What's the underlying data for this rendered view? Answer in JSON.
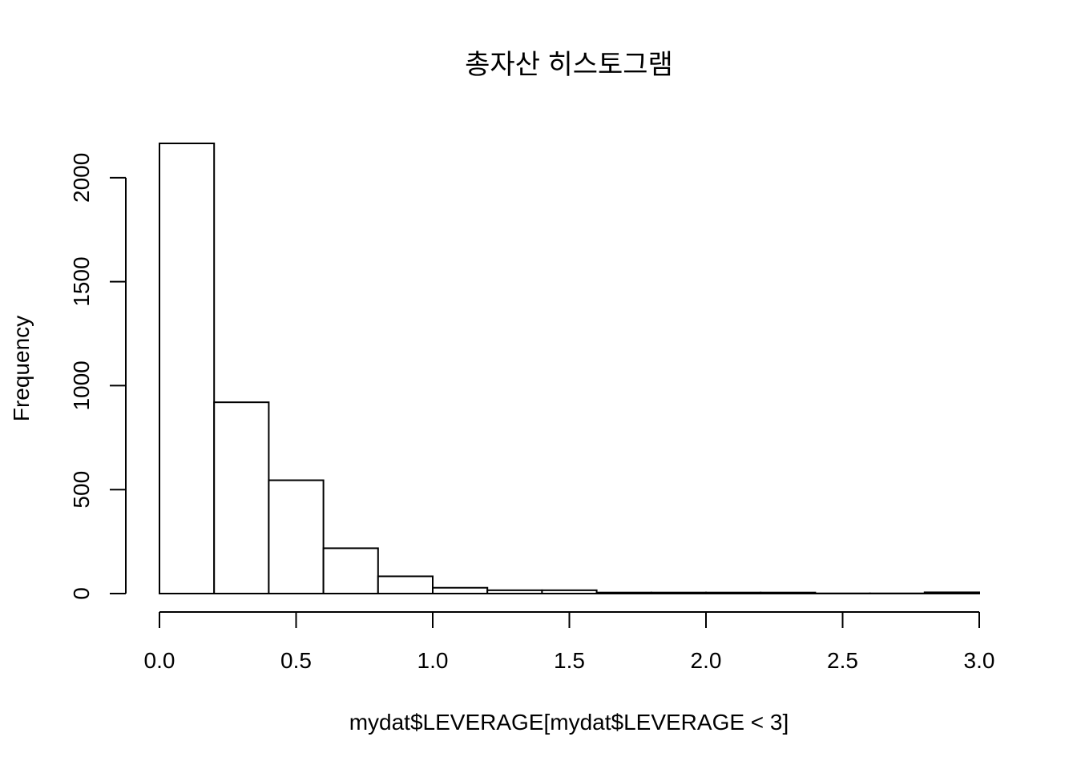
{
  "chart_data": {
    "type": "bar",
    "subtype": "histogram",
    "title": "총자산 히스토그램",
    "xlabel": "mydat$LEVERAGE[mydat$LEVERAGE < 3]",
    "ylabel": "Frequency",
    "bin_width": 0.2,
    "bins": [
      {
        "from": 0.0,
        "to": 0.2,
        "count": 2165
      },
      {
        "from": 0.2,
        "to": 0.4,
        "count": 920
      },
      {
        "from": 0.4,
        "to": 0.6,
        "count": 545
      },
      {
        "from": 0.6,
        "to": 0.8,
        "count": 218
      },
      {
        "from": 0.8,
        "to": 1.0,
        "count": 83
      },
      {
        "from": 1.0,
        "to": 1.2,
        "count": 28
      },
      {
        "from": 1.2,
        "to": 1.4,
        "count": 16
      },
      {
        "from": 1.4,
        "to": 1.6,
        "count": 16
      },
      {
        "from": 1.6,
        "to": 1.8,
        "count": 5
      },
      {
        "from": 1.8,
        "to": 2.0,
        "count": 5
      },
      {
        "from": 2.0,
        "to": 2.2,
        "count": 5
      },
      {
        "from": 2.2,
        "to": 2.4,
        "count": 5
      },
      {
        "from": 2.4,
        "to": 2.6,
        "count": 1
      },
      {
        "from": 2.6,
        "to": 2.8,
        "count": 1
      },
      {
        "from": 2.8,
        "to": 3.0,
        "count": 6
      }
    ],
    "xlim": [
      0,
      3
    ],
    "ylim": [
      0,
      2165
    ],
    "x_ticks": [
      {
        "value": 0.0,
        "label": "0.0"
      },
      {
        "value": 0.5,
        "label": "0.5"
      },
      {
        "value": 1.0,
        "label": "1.0"
      },
      {
        "value": 1.5,
        "label": "1.5"
      },
      {
        "value": 2.0,
        "label": "2.0"
      },
      {
        "value": 2.5,
        "label": "2.5"
      },
      {
        "value": 3.0,
        "label": "3.0"
      }
    ],
    "y_ticks": [
      {
        "value": 0,
        "label": "0"
      },
      {
        "value": 500,
        "label": "500"
      },
      {
        "value": 1000,
        "label": "1000"
      },
      {
        "value": 1500,
        "label": "1500"
      },
      {
        "value": 2000,
        "label": "2000"
      }
    ],
    "grid": false,
    "legend": "none",
    "bar_fill": "#ffffff",
    "bar_stroke": "#000000"
  }
}
